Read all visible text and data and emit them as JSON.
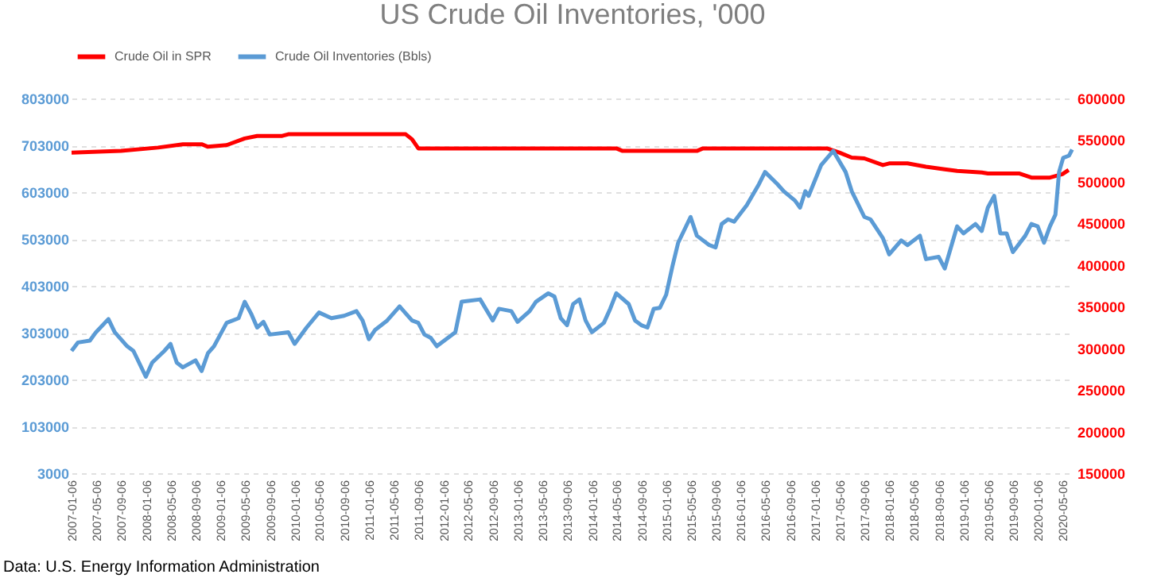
{
  "chart_data": {
    "type": "line",
    "title": "US Crude Oil Inventories, '000",
    "annotations": [
      "Data: U.S. Energy Information Administration"
    ],
    "legend": "top",
    "grid": "y",
    "line_style": "solid",
    "marker": "none",
    "xlim": [
      "2007-01-01",
      "2020-06-25"
    ],
    "xticks": [
      "2007-01-06",
      "2007-05-06",
      "2007-09-06",
      "2008-01-06",
      "2008-05-06",
      "2008-09-06",
      "2009-01-06",
      "2009-05-06",
      "2009-09-06",
      "2010-01-06",
      "2010-05-06",
      "2010-09-06",
      "2011-01-06",
      "2011-05-06",
      "2011-09-06",
      "2012-01-06",
      "2012-05-06",
      "2012-09-06",
      "2013-01-06",
      "2013-05-06",
      "2013-09-06",
      "2014-01-06",
      "2014-05-06",
      "2014-09-06",
      "2015-01-06",
      "2015-05-06",
      "2015-09-06",
      "2016-01-06",
      "2016-05-06",
      "2016-09-06",
      "2017-01-06",
      "2017-05-06",
      "2017-09-06",
      "2018-01-06",
      "2018-05-06",
      "2018-09-06",
      "2019-01-06",
      "2019-05-06",
      "2019-09-06",
      "2020-01-06",
      "2020-05-06"
    ],
    "ylim": [
      3000,
      803000
    ],
    "yticks": [
      3000,
      103000,
      203000,
      303000,
      403000,
      503000,
      603000,
      703000,
      803000
    ],
    "y2lim": [
      150000,
      600000
    ],
    "y2ticks": [
      150000,
      200000,
      250000,
      300000,
      350000,
      400000,
      450000,
      500000,
      550000,
      600000
    ],
    "series": [
      {
        "name": "Crude Oil in SPR",
        "color": "#ff0000",
        "axis": "y2",
        "x": [
          "2007-01",
          "2007-09",
          "2008-03",
          "2008-07",
          "2008-10",
          "2008-11",
          "2009-02",
          "2009-05",
          "2009-07",
          "2009-11",
          "2009-12",
          "2011-07",
          "2011-08",
          "2011-09",
          "2013-11",
          "2014-05",
          "2014-06",
          "2015-06",
          "2015-07",
          "2017-03",
          "2017-05",
          "2017-07",
          "2017-09",
          "2017-12",
          "2018-01",
          "2018-04",
          "2018-07",
          "2018-10",
          "2018-12",
          "2019-04",
          "2019-05",
          "2019-10",
          "2019-12",
          "2020-03",
          "2020-05",
          "2020-06"
        ],
        "values": [
          535000,
          537000,
          541000,
          545000,
          545000,
          542000,
          544000,
          552000,
          555000,
          555000,
          557000,
          557000,
          551000,
          540000,
          540000,
          540000,
          537000,
          537000,
          540000,
          540000,
          535000,
          529000,
          528000,
          520000,
          522000,
          522000,
          518000,
          515000,
          513000,
          511000,
          510000,
          510000,
          505000,
          505000,
          509000,
          514000
        ]
      },
      {
        "name": "Crude Oil Inventories (Bbls)",
        "color": "#5b9bd5",
        "axis": "y",
        "x": [
          "2007-01",
          "2007-02",
          "2007-04",
          "2007-05",
          "2007-07",
          "2007-08",
          "2007-10",
          "2007-11",
          "2008-01",
          "2008-02",
          "2008-04",
          "2008-05",
          "2008-06",
          "2008-07",
          "2008-09",
          "2008-10",
          "2008-11",
          "2008-12",
          "2009-02",
          "2009-04",
          "2009-05",
          "2009-06",
          "2009-07",
          "2009-08",
          "2009-09",
          "2009-12",
          "2010-01",
          "2010-03",
          "2010-05",
          "2010-07",
          "2010-09",
          "2010-11",
          "2010-12",
          "2011-01",
          "2011-02",
          "2011-04",
          "2011-06",
          "2011-08",
          "2011-09",
          "2011-10",
          "2011-11",
          "2011-12",
          "2012-03",
          "2012-04",
          "2012-07",
          "2012-09",
          "2012-10",
          "2012-12",
          "2013-01",
          "2013-03",
          "2013-04",
          "2013-06",
          "2013-07",
          "2013-08",
          "2013-09",
          "2013-10",
          "2013-11",
          "2013-12",
          "2014-01",
          "2014-03",
          "2014-04",
          "2014-05",
          "2014-07",
          "2014-08",
          "2014-09",
          "2014-10",
          "2014-11",
          "2014-12",
          "2015-01",
          "2015-02",
          "2015-03",
          "2015-05",
          "2015-06",
          "2015-08",
          "2015-09",
          "2015-10",
          "2015-11",
          "2015-12",
          "2016-02",
          "2016-04",
          "2016-05",
          "2016-07",
          "2016-08",
          "2016-09-25",
          "2016-10-20",
          "2016-11-15",
          "2016-12",
          "2017-02",
          "2017-04",
          "2017-06",
          "2017-07",
          "2017-09",
          "2017-10",
          "2017-12",
          "2018-01",
          "2018-03",
          "2018-04",
          "2018-06",
          "2018-07",
          "2018-09",
          "2018-10",
          "2018-12",
          "2019-01",
          "2019-03",
          "2019-04",
          "2019-05",
          "2019-06",
          "2019-07",
          "2019-08",
          "2019-09",
          "2019-11",
          "2019-12",
          "2020-01",
          "2020-02",
          "2020-03",
          "2020-03-28",
          "2020-04-15",
          "2020-05-05",
          "2020-06-03",
          "2020-06-18"
        ],
        "values": [
          264000,
          282000,
          286000,
          304000,
          332000,
          304000,
          274000,
          264000,
          209000,
          239000,
          264000,
          279000,
          239000,
          229000,
          244000,
          221000,
          259000,
          274000,
          324000,
          334000,
          369000,
          344000,
          314000,
          326000,
          299000,
          304000,
          279000,
          314000,
          346000,
          334000,
          339000,
          349000,
          329000,
          289000,
          309000,
          329000,
          359000,
          329000,
          324000,
          299000,
          292000,
          274000,
          304000,
          369000,
          374000,
          329000,
          354000,
          349000,
          326000,
          349000,
          369000,
          387000,
          380000,
          334000,
          319000,
          364000,
          374000,
          329000,
          304000,
          324000,
          354000,
          387000,
          364000,
          329000,
          319000,
          314000,
          354000,
          356000,
          384000,
          445000,
          495000,
          550000,
          510000,
          490000,
          485000,
          535000,
          545000,
          540000,
          575000,
          620000,
          646000,
          620000,
          605000,
          585000,
          570000,
          605000,
          595000,
          661000,
          691000,
          646000,
          605000,
          550000,
          545000,
          505000,
          470000,
          500000,
          490000,
          510000,
          460000,
          465000,
          440000,
          530000,
          515000,
          535000,
          520000,
          570000,
          595000,
          515000,
          515000,
          475000,
          510000,
          535000,
          530000,
          495000,
          530000,
          555000,
          646000,
          676000,
          681000,
          694000
        ]
      }
    ]
  }
}
